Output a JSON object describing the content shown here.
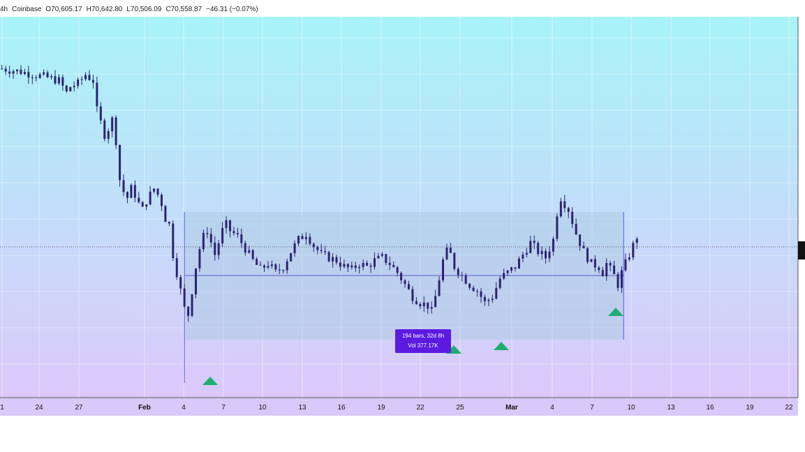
{
  "header": {
    "interval": "4h",
    "exchange": "Coinbase",
    "open": "O70,605.17",
    "high": "H70,642.80",
    "low": "L70,506.09",
    "close": "C70,558.87",
    "change": "−46.31 (−0.07%)"
  },
  "measure": {
    "bars_label": "194 bars, 32d 8h",
    "vol_label": "Vol 377.17K"
  },
  "colors": {
    "gradient_top": "#a8f4f8",
    "gradient_bottom": "#dcc8fb",
    "candle": "#2b2370",
    "range_fill": "#a9c8e0",
    "range_line": "#5b5ad6",
    "tooltip_bg": "#5b1be0",
    "marker": "#1fae6f"
  },
  "chart_data": {
    "type": "candlestick",
    "x_tick_labels": [
      "1",
      "24",
      "27",
      "Feb",
      "4",
      "7",
      "10",
      "13",
      "16",
      "19",
      "22",
      "25",
      "Mar",
      "4",
      "7",
      "10",
      "13",
      "16",
      "19",
      "22"
    ],
    "y_range": [
      0,
      100
    ],
    "y_axis_note": "price axis labels are cut off at the right edge",
    "path": [
      [
        0,
        92
      ],
      [
        5,
        91
      ],
      [
        12,
        89
      ],
      [
        15,
        88
      ],
      [
        17,
        84
      ],
      [
        18,
        86
      ],
      [
        20,
        87
      ],
      [
        22,
        90
      ],
      [
        24,
        88
      ],
      [
        25,
        78
      ],
      [
        26,
        74
      ],
      [
        27,
        70
      ],
      [
        28,
        72
      ],
      [
        29,
        75
      ],
      [
        30,
        68
      ],
      [
        31,
        55
      ],
      [
        32,
        51
      ],
      [
        33,
        49
      ],
      [
        34,
        52
      ],
      [
        35,
        50
      ],
      [
        36,
        47
      ],
      [
        37,
        45
      ],
      [
        38,
        48
      ],
      [
        39,
        50
      ],
      [
        40,
        52
      ],
      [
        41,
        50
      ],
      [
        42,
        47
      ],
      [
        43,
        42
      ],
      [
        44,
        40
      ],
      [
        45,
        30
      ],
      [
        46,
        24
      ],
      [
        47,
        18
      ],
      [
        48,
        12
      ],
      [
        48.5,
        6
      ],
      [
        49,
        10
      ],
      [
        50,
        18
      ],
      [
        51,
        26
      ],
      [
        52,
        32
      ],
      [
        53,
        36
      ],
      [
        54,
        38
      ],
      [
        55,
        34
      ],
      [
        56,
        30
      ],
      [
        57,
        34
      ],
      [
        58,
        38
      ],
      [
        59,
        40
      ],
      [
        60,
        38
      ],
      [
        62,
        36
      ],
      [
        64,
        32
      ],
      [
        66,
        28
      ],
      [
        68,
        25
      ],
      [
        70,
        27
      ],
      [
        72,
        24
      ],
      [
        74,
        26
      ],
      [
        76,
        31
      ],
      [
        78,
        35
      ],
      [
        80,
        37
      ],
      [
        82,
        33
      ],
      [
        84,
        30
      ],
      [
        86,
        29
      ],
      [
        88,
        28
      ],
      [
        90,
        26
      ],
      [
        92,
        25
      ],
      [
        94,
        27
      ],
      [
        96,
        26
      ],
      [
        98,
        28
      ],
      [
        100,
        29
      ],
      [
        102,
        27
      ],
      [
        104,
        24
      ],
      [
        106,
        20
      ],
      [
        108,
        16
      ],
      [
        110,
        14
      ],
      [
        112,
        13
      ],
      [
        113,
        11
      ],
      [
        114,
        16
      ],
      [
        115,
        22
      ],
      [
        116,
        28
      ],
      [
        117,
        31
      ],
      [
        118,
        30
      ],
      [
        119,
        26
      ],
      [
        121,
        23
      ],
      [
        123,
        20
      ],
      [
        125,
        18
      ],
      [
        127,
        14
      ],
      [
        129,
        16
      ],
      [
        131,
        22
      ],
      [
        133,
        24
      ],
      [
        135,
        26
      ],
      [
        137,
        30
      ],
      [
        139,
        34
      ],
      [
        141,
        31
      ],
      [
        143,
        29
      ],
      [
        145,
        35
      ],
      [
        146,
        44
      ],
      [
        147,
        49
      ],
      [
        148,
        47
      ],
      [
        149,
        45
      ],
      [
        150,
        41
      ],
      [
        151,
        37
      ],
      [
        152,
        34
      ],
      [
        153,
        31
      ],
      [
        154,
        29
      ],
      [
        155,
        27
      ],
      [
        157,
        26
      ],
      [
        158,
        24
      ],
      [
        159,
        27
      ],
      [
        160,
        25
      ],
      [
        161,
        23
      ],
      [
        162,
        20
      ],
      [
        163,
        24
      ],
      [
        164,
        27
      ],
      [
        165,
        30
      ],
      [
        166,
        33
      ],
      [
        167,
        36
      ]
    ]
  }
}
